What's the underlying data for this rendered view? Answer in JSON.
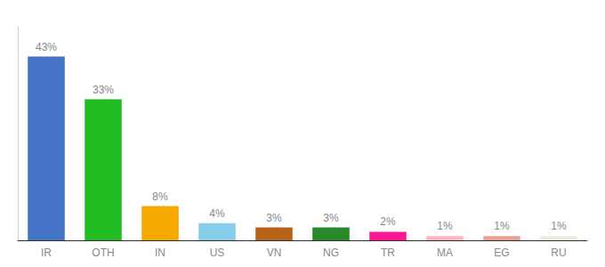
{
  "chart_data": {
    "type": "bar",
    "categories": [
      "IR",
      "OTH",
      "IN",
      "US",
      "VN",
      "NG",
      "TR",
      "MA",
      "EG",
      "RU"
    ],
    "values": [
      43,
      33,
      8,
      4,
      3,
      3,
      2,
      1,
      1,
      1
    ],
    "value_labels": [
      "43%",
      "33%",
      "8%",
      "4%",
      "3%",
      "3%",
      "2%",
      "1%",
      "1%",
      "1%"
    ],
    "colors": [
      "#4472c4",
      "#22bb22",
      "#f5a800",
      "#87ceeb",
      "#b8621a",
      "#2a8a2a",
      "#ff1493",
      "#ffb6c1",
      "#e8a090",
      "#f0ede0"
    ],
    "ylim": [
      0,
      50
    ],
    "data_labels": true,
    "tick_labels": "x",
    "grid": false
  }
}
